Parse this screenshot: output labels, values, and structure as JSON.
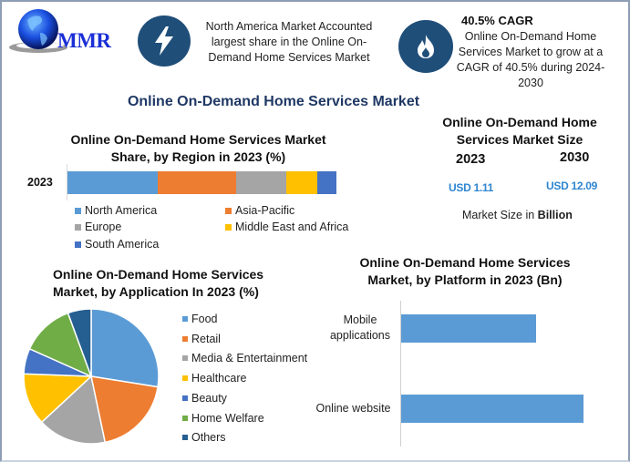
{
  "brand": {
    "logo_text": "MMR",
    "logo_icon": "globe-icon"
  },
  "highlights": [
    {
      "icon": "lightning-bolt-icon",
      "text": "North America Market Accounted largest share in the Online On-Demand Home Services Market",
      "lines": [
        "North America Market Accounted",
        "largest share in the Online On-",
        "Demand Home Services Market"
      ]
    },
    {
      "icon": "flame-icon",
      "title": "40.5% CAGR",
      "lines": [
        "Online On-Demand Home",
        "Services Market to grow at a",
        "CAGR of 40.5% during 2024-",
        "2030"
      ]
    }
  ],
  "main_title": "Online On-Demand Home Services Market",
  "market_size": {
    "title_lines": [
      "Online On-Demand Home",
      "Services Market Size"
    ],
    "years": [
      "2023",
      "2030"
    ],
    "values": [
      "USD 1.11",
      "USD 12.09"
    ],
    "footnote_prefix": "Market Size in ",
    "footnote_bold": "Billion"
  },
  "colors": {
    "north_america": "#5b9bd5",
    "asia_pacific": "#ed7d31",
    "europe": "#a5a5a5",
    "mea": "#ffc000",
    "south_america": "#4472c4",
    "home_welfare": "#70ad47",
    "others": "#255e91",
    "icon_circle": "#1f4e79",
    "title_navy": "#1f3864",
    "value_blue": "#2e86d1"
  },
  "chart_data": [
    {
      "type": "bar",
      "orientation": "horizontal-stacked",
      "title": "Online On-Demand Home Services Market Share, by Region in 2023 (%)",
      "title_lines": [
        "Online On-Demand Home Services Market",
        "Share, by Region in 2023 (%)"
      ],
      "categories": [
        "2023"
      ],
      "series": [
        {
          "name": "North America",
          "values": [
            33.6
          ]
        },
        {
          "name": "Asia-Pacific",
          "values": [
            29.2
          ]
        },
        {
          "name": "Europe",
          "values": [
            18.6
          ]
        },
        {
          "name": "Middle East and Africa",
          "values": [
            11.5
          ]
        },
        {
          "name": "South America",
          "values": [
            7.1
          ]
        }
      ],
      "legend": [
        "North America",
        "Asia-Pacific",
        "Europe",
        "Middle East and Africa",
        "South America"
      ],
      "legend_position": "bottom",
      "xlim": [
        0,
        100
      ],
      "grid": false
    },
    {
      "type": "pie",
      "title": "Online On-Demand Home Services Market, by Application In 2023 (%)",
      "title_lines": [
        "Online On-Demand Home Services",
        "Market, by Application In 2023 (%)"
      ],
      "categories": [
        "Food",
        "Retail",
        "Media & Entertainment",
        "Healthcare",
        "Beauty",
        "Home Welfare",
        "Others"
      ],
      "values": [
        27.5,
        19.2,
        16.4,
        12.5,
        6.1,
        12.7,
        5.6
      ],
      "legend_position": "right"
    },
    {
      "type": "bar",
      "orientation": "horizontal",
      "title": "Online On-Demand Home Services Market, by Platform in 2023 (Bn)",
      "title_lines": [
        "Online On-Demand Home Services",
        "Market, by Platform in 2023 (Bn)"
      ],
      "categories": [
        "Mobile applications",
        "Online website"
      ],
      "category_lines": [
        [
          "Mobile",
          "applications"
        ],
        [
          "Online website"
        ]
      ],
      "values": [
        0.74,
        1.0
      ],
      "value_note": "relative bar lengths; no axis scale shown",
      "grid": false
    }
  ]
}
